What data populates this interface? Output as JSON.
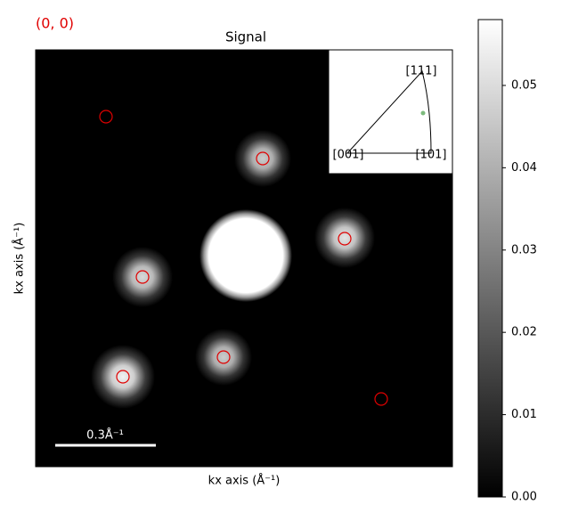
{
  "chart_data": {
    "type": "image",
    "title": "Signal",
    "corner_label": "(0, 0)",
    "xlabel": "kx axis (Å⁻¹)",
    "ylabel": "kx axis (Å⁻¹)",
    "scalebar_label": "0.3Å⁻¹",
    "inset_labels": [
      "[111]",
      "[001]",
      "[101]"
    ],
    "colormap": "gray",
    "clim": [
      0,
      0.058
    ],
    "cticks": [
      {
        "value": 0,
        "label": "0.00"
      },
      {
        "value": 0.01,
        "label": "0.01"
      },
      {
        "value": 0.02,
        "label": "0.02"
      },
      {
        "value": 0.03,
        "label": "0.03"
      },
      {
        "value": 0.04,
        "label": "0.04"
      },
      {
        "value": 0.05,
        "label": "0.05"
      }
    ]
  }
}
